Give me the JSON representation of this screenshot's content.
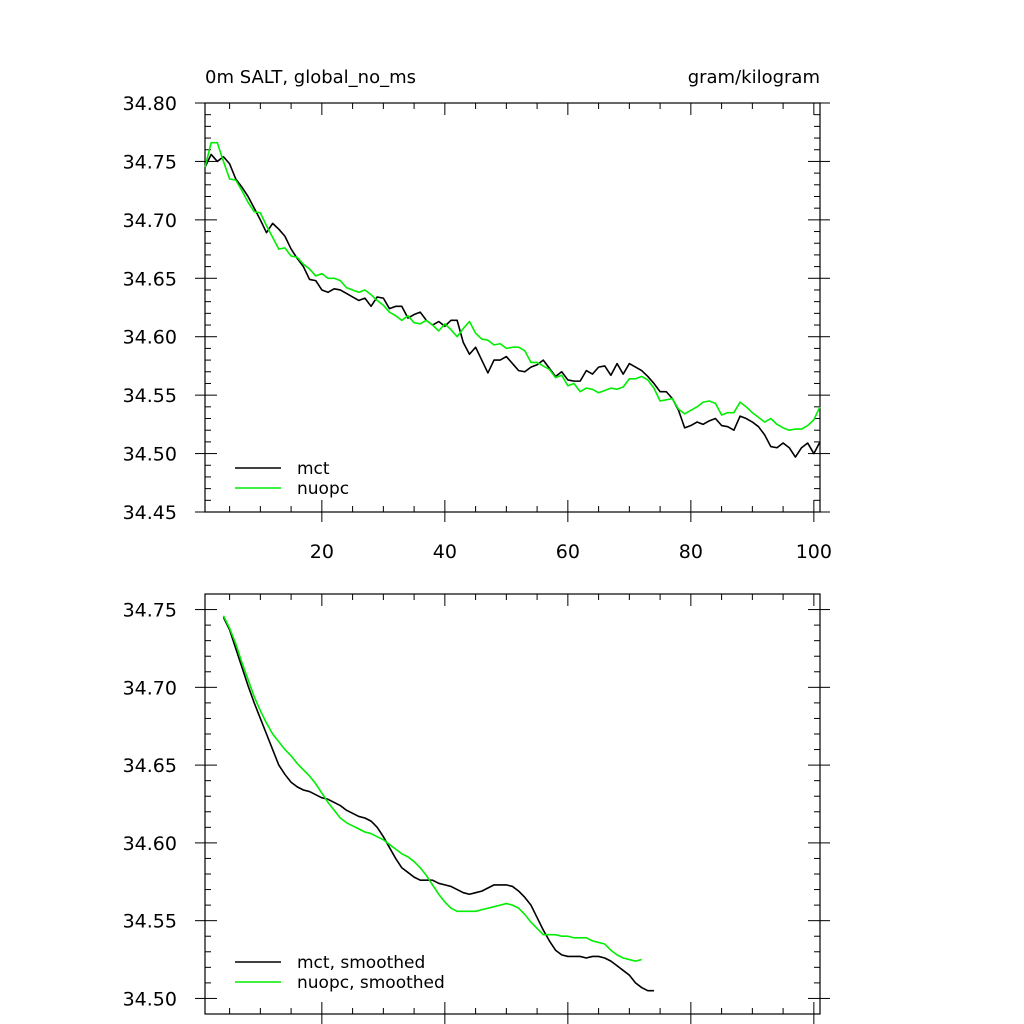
{
  "chart_data": [
    {
      "type": "line",
      "title_left": "0m SALT, global_no_ms",
      "title_right": "gram/kilogram",
      "xlim": [
        1,
        101
      ],
      "ylim": [
        34.45,
        34.8
      ],
      "xticks": [
        20,
        40,
        60,
        80,
        100
      ],
      "yticks": [
        34.45,
        34.5,
        34.55,
        34.6,
        34.65,
        34.7,
        34.75,
        34.8
      ],
      "ytick_labels": [
        "34.45",
        "34.50",
        "34.55",
        "34.60",
        "34.65",
        "34.70",
        "34.75",
        "34.80"
      ],
      "xtick_labels": [
        "20",
        "40",
        "60",
        "80",
        "100"
      ],
      "legend_position": "bottom-left",
      "colors": {
        "mct": "#000000",
        "nuopc": "#00ee00"
      },
      "series": [
        {
          "name": "mct",
          "color": "#000000",
          "x_start": 1,
          "values": [
            34.745,
            34.756,
            34.75,
            34.754,
            34.748,
            34.735,
            34.728,
            34.72,
            34.71,
            34.7,
            34.689,
            34.697,
            34.692,
            34.686,
            34.675,
            34.667,
            34.66,
            34.649,
            34.648,
            34.64,
            34.638,
            34.641,
            34.64,
            34.637,
            34.634,
            34.631,
            34.633,
            34.626,
            34.634,
            34.633,
            34.624,
            34.626,
            34.626,
            34.616,
            34.619,
            34.621,
            34.614,
            34.61,
            34.613,
            34.609,
            34.614,
            34.614,
            34.595,
            34.585,
            34.591,
            34.58,
            34.569,
            34.58,
            34.58,
            34.583,
            34.577,
            34.571,
            34.57,
            34.574,
            34.576,
            34.58,
            34.573,
            34.566,
            34.57,
            34.563,
            34.562,
            34.562,
            34.571,
            34.568,
            34.574,
            34.575,
            34.567,
            34.577,
            34.568,
            34.577,
            34.574,
            34.571,
            34.566,
            34.56,
            34.553,
            34.553,
            34.547,
            34.537,
            34.522,
            34.524,
            34.527,
            34.525,
            34.528,
            34.53,
            34.524,
            34.523,
            34.52,
            34.532,
            34.53,
            34.527,
            34.523,
            34.516,
            34.506,
            34.505,
            34.509,
            34.505,
            34.497,
            34.505,
            34.509,
            34.5,
            34.51
          ]
        },
        {
          "name": "nuopc",
          "color": "#00ee00",
          "x_start": 1,
          "values": [
            34.745,
            34.766,
            34.766,
            34.75,
            34.735,
            34.734,
            34.725,
            34.715,
            34.707,
            34.706,
            34.695,
            34.685,
            34.675,
            34.676,
            34.669,
            34.668,
            34.662,
            34.658,
            34.652,
            34.654,
            34.65,
            34.65,
            34.648,
            34.642,
            34.64,
            34.638,
            34.64,
            34.636,
            34.631,
            34.627,
            34.621,
            34.618,
            34.614,
            34.618,
            34.612,
            34.611,
            34.614,
            34.61,
            34.605,
            34.611,
            34.606,
            34.6,
            34.607,
            34.613,
            34.603,
            34.598,
            34.597,
            34.593,
            34.594,
            34.59,
            34.591,
            34.591,
            34.588,
            34.578,
            34.578,
            34.575,
            34.572,
            34.565,
            34.567,
            34.558,
            34.56,
            34.553,
            34.556,
            34.555,
            34.552,
            34.554,
            34.556,
            34.555,
            34.557,
            34.564,
            34.564,
            34.566,
            34.563,
            34.556,
            34.545,
            34.546,
            34.547,
            34.538,
            34.534,
            34.537,
            34.54,
            34.544,
            34.545,
            34.543,
            34.533,
            34.535,
            34.535,
            34.544,
            34.54,
            34.535,
            34.531,
            34.527,
            34.53,
            34.525,
            34.522,
            34.52,
            34.521,
            34.521,
            34.524,
            34.529,
            34.54
          ]
        }
      ]
    },
    {
      "type": "line",
      "xlim": [
        1,
        101
      ],
      "ylim": [
        34.49,
        34.76
      ],
      "xticks": [
        20,
        40,
        60,
        80,
        100
      ],
      "yticks": [
        34.5,
        34.55,
        34.6,
        34.65,
        34.7,
        34.75
      ],
      "ytick_labels": [
        "34.50",
        "34.55",
        "34.60",
        "34.65",
        "34.70",
        "34.75"
      ],
      "legend_position": "bottom-left",
      "series": [
        {
          "name": "mct, smoothed",
          "color": "#000000",
          "x_start": 4,
          "values": [
            34.745,
            34.737,
            34.725,
            34.713,
            34.701,
            34.69,
            34.68,
            34.67,
            34.66,
            34.65,
            34.644,
            34.639,
            34.636,
            34.634,
            34.633,
            34.631,
            34.629,
            34.628,
            34.626,
            34.624,
            34.621,
            34.619,
            34.617,
            34.616,
            34.614,
            34.61,
            34.604,
            34.597,
            34.59,
            34.584,
            34.581,
            34.578,
            34.576,
            34.576,
            34.576,
            34.574,
            34.573,
            34.572,
            34.57,
            34.568,
            34.567,
            34.568,
            34.569,
            34.571,
            34.573,
            34.573,
            34.573,
            34.572,
            34.569,
            34.565,
            34.56,
            34.552,
            34.544,
            34.537,
            34.531,
            34.528,
            34.527,
            34.527,
            34.527,
            34.526,
            34.527,
            34.527,
            34.526,
            34.524,
            34.521,
            34.518,
            34.515,
            34.51,
            34.507,
            34.505,
            34.505
          ]
        },
        {
          "name": "nuopc, smoothed",
          "color": "#00ee00",
          "x_start": 4,
          "values": [
            34.746,
            34.738,
            34.728,
            34.716,
            34.705,
            34.694,
            34.685,
            34.677,
            34.67,
            34.665,
            34.66,
            34.656,
            34.651,
            34.647,
            34.643,
            34.638,
            34.632,
            34.626,
            34.621,
            34.616,
            34.613,
            34.611,
            34.609,
            34.607,
            34.606,
            34.604,
            34.602,
            34.599,
            34.596,
            34.593,
            34.591,
            34.588,
            34.584,
            34.579,
            34.573,
            34.567,
            34.562,
            34.558,
            34.556,
            34.556,
            34.556,
            34.556,
            34.557,
            34.558,
            34.559,
            34.56,
            34.561,
            34.56,
            34.558,
            34.554,
            34.549,
            34.545,
            34.541,
            34.541,
            34.541,
            34.54,
            34.54,
            34.539,
            34.539,
            34.539,
            34.537,
            34.536,
            34.535,
            34.531,
            34.528,
            34.526,
            34.525,
            34.524,
            34.525
          ]
        }
      ]
    }
  ]
}
